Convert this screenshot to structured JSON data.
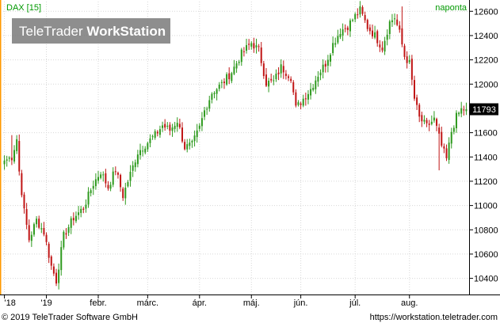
{
  "header": {
    "symbol_label": "DAX [15]",
    "period_label": "naponta",
    "brand_plain": "TeleTrader ",
    "brand_bold": "WorkStation"
  },
  "footer": {
    "copyright": "© 2019 TeleTrader Software GmbH",
    "url": "https://workstation.teletrader.com"
  },
  "colors": {
    "up": "#2e9a1e",
    "down": "#c01515",
    "grid": "#d7d7d7",
    "header_text": "#009900",
    "accent": "#ff9900",
    "price_tag_bg": "#000000",
    "price_tag_text": "#ffffff",
    "brand_bg": "#7a7a7a"
  },
  "chart_data": {
    "type": "candlestick",
    "title": "DAX [15]",
    "interval": "naponta",
    "last_price": "11793",
    "ylim": [
      10280,
      12680
    ],
    "y_ticks": [
      10400,
      10600,
      10800,
      11000,
      11200,
      11400,
      11600,
      11800,
      12000,
      12200,
      12400,
      12600
    ],
    "x_ticks": [
      "'18",
      "'19",
      "febr.",
      "márc.",
      "ápr.",
      "máj.",
      "jún.",
      "júl.",
      "aug."
    ],
    "x_tick_index": [
      0,
      17,
      38,
      58,
      79,
      100,
      120,
      142,
      164
    ],
    "num_candles": 188,
    "grid": true,
    "series_close_anchors": [
      [
        0,
        11370
      ],
      [
        3,
        11400
      ],
      [
        5,
        11550
      ],
      [
        6,
        11280
      ],
      [
        8,
        10950
      ],
      [
        10,
        10720
      ],
      [
        13,
        10880
      ],
      [
        16,
        10780
      ],
      [
        19,
        10500
      ],
      [
        21,
        10380
      ],
      [
        24,
        10750
      ],
      [
        28,
        10900
      ],
      [
        32,
        10980
      ],
      [
        36,
        11180
      ],
      [
        39,
        11280
      ],
      [
        42,
        11150
      ],
      [
        45,
        11300
      ],
      [
        48,
        11080
      ],
      [
        51,
        11260
      ],
      [
        54,
        11440
      ],
      [
        58,
        11520
      ],
      [
        61,
        11580
      ],
      [
        64,
        11660
      ],
      [
        67,
        11620
      ],
      [
        70,
        11700
      ],
      [
        73,
        11480
      ],
      [
        76,
        11500
      ],
      [
        79,
        11640
      ],
      [
        81,
        11780
      ],
      [
        84,
        11930
      ],
      [
        88,
        12000
      ],
      [
        92,
        12100
      ],
      [
        96,
        12250
      ],
      [
        100,
        12340
      ],
      [
        103,
        12280
      ],
      [
        106,
        12010
      ],
      [
        109,
        12020
      ],
      [
        112,
        12140
      ],
      [
        116,
        12060
      ],
      [
        118,
        11800
      ],
      [
        121,
        11880
      ],
      [
        124,
        11960
      ],
      [
        127,
        12080
      ],
      [
        130,
        12170
      ],
      [
        133,
        12330
      ],
      [
        136,
        12440
      ],
      [
        139,
        12480
      ],
      [
        142,
        12560
      ],
      [
        144,
        12610
      ],
      [
        147,
        12470
      ],
      [
        150,
        12400
      ],
      [
        153,
        12300
      ],
      [
        156,
        12510
      ],
      [
        158,
        12550
      ],
      [
        160,
        12420
      ],
      [
        162,
        12230
      ],
      [
        164,
        12170
      ],
      [
        166,
        11880
      ],
      [
        168,
        11720
      ],
      [
        171,
        11650
      ],
      [
        174,
        11710
      ],
      [
        177,
        11490
      ],
      [
        179,
        11380
      ],
      [
        181,
        11610
      ],
      [
        183,
        11730
      ],
      [
        185,
        11790
      ],
      [
        187,
        11793
      ]
    ],
    "wick_spikes": [
      {
        "index": 176,
        "low": 11290
      },
      {
        "index": 161,
        "high": 12640
      },
      {
        "index": 3,
        "high": 11580
      }
    ]
  }
}
